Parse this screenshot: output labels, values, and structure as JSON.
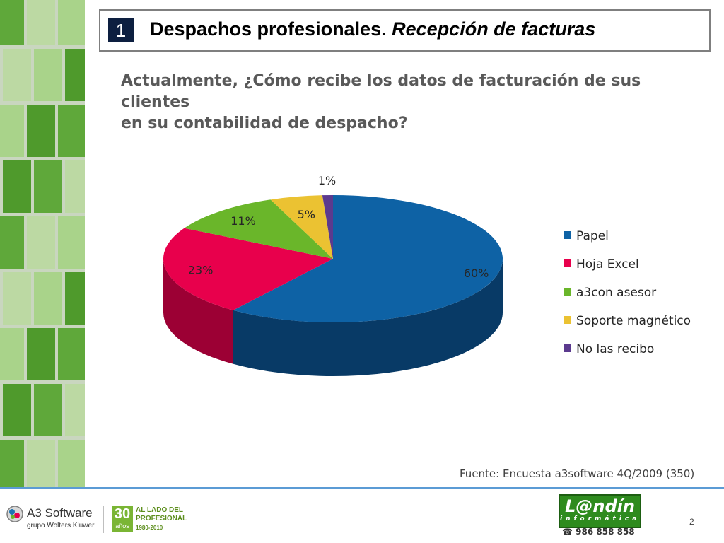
{
  "slide": {
    "number": "1",
    "title_main": "Despachos profesionales.",
    "title_italic": "Recepción de facturas",
    "question_line1": "Actualmente, ¿Cómo recibe los datos de facturación de sus clientes",
    "question_line2": "en su contabilidad de despacho?",
    "source": "Fuente:  Encuesta a3software  4Q/2009 (350)",
    "page_number": "2"
  },
  "chart_data": {
    "type": "pie",
    "title": "",
    "categories": [
      "Papel",
      "Hoja Excel",
      "a3con asesor",
      "Soporte magnético",
      "No las recibo"
    ],
    "values": [
      60,
      23,
      11,
      5,
      1
    ],
    "labels": [
      "60%",
      "23%",
      "11%",
      "5%",
      "1%"
    ],
    "colors": [
      "#0e62a5",
      "#e8004c",
      "#6ab62a",
      "#ebc232",
      "#5b3a8e"
    ],
    "side_colors": [
      "#083a66",
      "#9c0034",
      "#3d7317",
      "#a07f14",
      "#3a2460"
    ],
    "legend_position": "right",
    "style": "3d"
  },
  "footer": {
    "a3_name": "A3 Software",
    "a3_sub": "grupo Wolters Kluwer",
    "badge_number": "30",
    "badge_word": "años",
    "tagline_line1": "AL LADO DEL",
    "tagline_line2": "PROFESIONAL",
    "tagline_years": "1980-2010",
    "landin_name": "L@ndín",
    "landin_sub": "informática",
    "phone": "986 858 858",
    "phone_icon": "phone-icon"
  }
}
